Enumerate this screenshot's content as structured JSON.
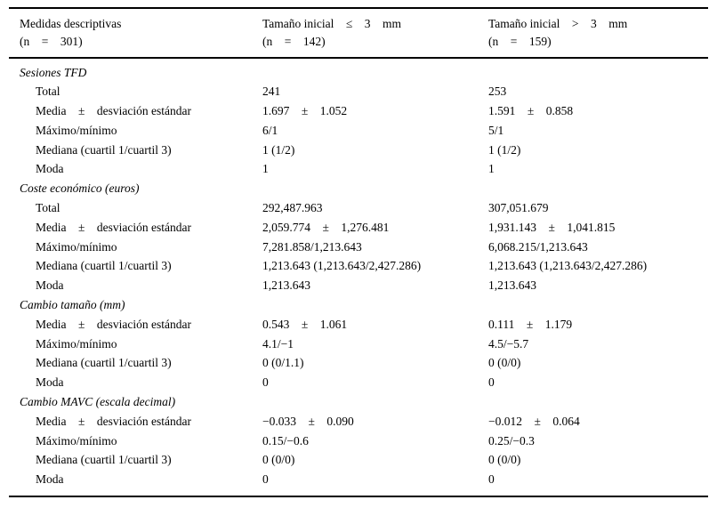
{
  "colors": {
    "background": "#ffffff",
    "text": "#000000",
    "rule": "#000000"
  },
  "table": {
    "header": {
      "col1_line1": "Medidas descriptivas",
      "col1_line2": "(n = 301)",
      "col2_line1": "Tamaño inicial ≤ 3 mm",
      "col2_line2": "(n = 142)",
      "col3_line1": "Tamaño inicial > 3 mm",
      "col3_line2": "(n = 159)"
    },
    "sections": [
      {
        "title": "Sesiones TFD",
        "rows": [
          {
            "label": "Total",
            "col2": "241",
            "col3": "253"
          },
          {
            "label": "Media ± desviación estándar",
            "col2": "1.697 ± 1.052",
            "col3": "1.591 ± 0.858"
          },
          {
            "label": "Máximo/mínimo",
            "col2": "6/1",
            "col3": "5/1"
          },
          {
            "label": "Mediana (cuartil 1/cuartil 3)",
            "col2": "1 (1/2)",
            "col3": "1 (1/2)"
          },
          {
            "label": "Moda",
            "col2": "1",
            "col3": "1"
          }
        ]
      },
      {
        "title": "Coste económico (euros)",
        "rows": [
          {
            "label": "Total",
            "col2": "292,487.963",
            "col3": "307,051.679"
          },
          {
            "label": "Media ± desviación estándar",
            "col2": "2,059.774 ± 1,276.481",
            "col3": "1,931.143 ± 1,041.815"
          },
          {
            "label": "Máximo/mínimo",
            "col2": "7,281.858/1,213.643",
            "col3": "6,068.215/1,213.643"
          },
          {
            "label": "Mediana (cuartil 1/cuartil 3)",
            "col2": "1,213.643 (1,213.643/2,427.286)",
            "col3": "1,213.643 (1,213.643/2,427.286)"
          },
          {
            "label": "Moda",
            "col2": "1,213.643",
            "col3": "1,213.643"
          }
        ]
      },
      {
        "title": "Cambio tamaño (mm)",
        "rows": [
          {
            "label": "Media ± desviación estándar",
            "col2": "0.543 ± 1.061",
            "col3": "0.111 ± 1.179"
          },
          {
            "label": "Máximo/mínimo",
            "col2": "4.1/−1",
            "col3": "4.5/−5.7"
          },
          {
            "label": "Mediana (cuartil 1/cuartil 3)",
            "col2": "0 (0/1.1)",
            "col3": "0 (0/0)"
          },
          {
            "label": "Moda",
            "col2": "0",
            "col3": "0"
          }
        ]
      },
      {
        "title": "Cambio MAVC (escala decimal)",
        "rows": [
          {
            "label": "Media ± desviación estándar",
            "col2": "−0.033 ± 0.090",
            "col3": "−0.012 ± 0.064"
          },
          {
            "label": "Máximo/mínimo",
            "col2": "0.15/−0.6",
            "col3": "0.25/−0.3"
          },
          {
            "label": "Mediana (cuartil 1/cuartil 3)",
            "col2": "0 (0/0)",
            "col3": "0 (0/0)"
          },
          {
            "label": "Moda",
            "col2": "0",
            "col3": "0"
          }
        ]
      }
    ]
  }
}
